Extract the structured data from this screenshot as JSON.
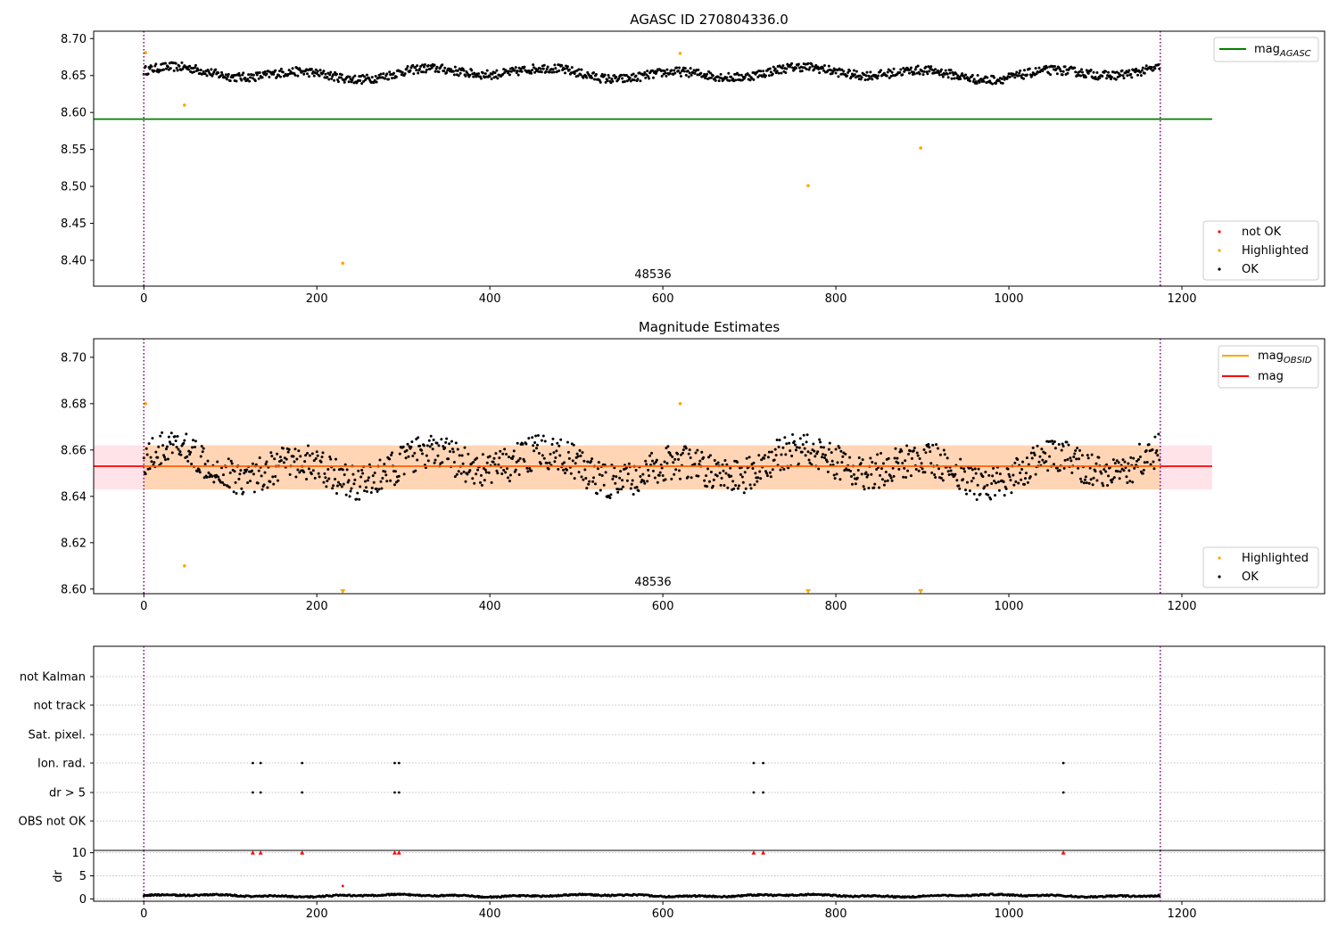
{
  "chart_data": [
    {
      "type": "scatter",
      "title": "AGASC ID 270804336.0",
      "xlim": [
        -58,
        1365
      ],
      "ylim": [
        8.365,
        8.71
      ],
      "xticks": [
        0,
        200,
        400,
        600,
        800,
        1000,
        1200
      ],
      "yticks": [
        8.4,
        8.45,
        8.5,
        8.55,
        8.6,
        8.65,
        8.7
      ],
      "grid": false,
      "obsid_label": "48536",
      "obsid_label_x": 588,
      "vlines": [
        0,
        1175
      ],
      "hlines": [
        {
          "name": "mag_AGASC",
          "y": 8.591,
          "x_range": [
            -58,
            1235
          ],
          "color": "#008000"
        }
      ],
      "noise": {
        "center": 8.653,
        "amplitude": 0.009,
        "spread": 0.006,
        "n": 1175
      },
      "highlighted": [
        {
          "x": 2,
          "y": 8.681
        },
        {
          "x": 47,
          "y": 8.61
        },
        {
          "x": 230,
          "y": 8.396
        },
        {
          "x": 620,
          "y": 8.68
        },
        {
          "x": 768,
          "y": 8.501
        },
        {
          "x": 898,
          "y": 8.552
        }
      ],
      "legends": [
        {
          "placement": "upper right",
          "entries": [
            {
              "label": "mag",
              "sub": "AGASC",
              "kind": "line",
              "color": "#008000"
            }
          ]
        },
        {
          "placement": "lower right",
          "entries": [
            {
              "label": "not OK",
              "kind": "dot",
              "color": "#ff0000"
            },
            {
              "label": "Highlighted",
              "kind": "dot",
              "color": "#ffa500"
            },
            {
              "label": "OK",
              "kind": "dot",
              "color": "#000000"
            }
          ]
        }
      ]
    },
    {
      "type": "scatter",
      "title": "Magnitude Estimates",
      "xlim": [
        -58,
        1365
      ],
      "ylim": [
        8.598,
        8.708
      ],
      "xticks": [
        0,
        200,
        400,
        600,
        800,
        1000,
        1200
      ],
      "yticks": [
        8.6,
        8.62,
        8.64,
        8.66,
        8.68,
        8.7
      ],
      "grid": false,
      "obsid_label": "48536",
      "obsid_label_x": 588,
      "vlines": [
        0,
        1175
      ],
      "band": {
        "y": [
          8.643,
          8.662
        ],
        "x_range": [
          -58,
          1235
        ],
        "inner_x_range": [
          0,
          1175
        ],
        "outer_color": "#ffc0cb",
        "inner_color": "#ffa500"
      },
      "hlines": [
        {
          "name": "mag",
          "y": 8.653,
          "x_range": [
            -58,
            1235
          ],
          "color": "#ff0000"
        }
      ],
      "noise": {
        "center": 8.653,
        "amplitude": 0.008,
        "spread": 0.0075,
        "n": 1175
      },
      "highlighted": [
        {
          "x": 2,
          "y": 8.68
        },
        {
          "x": 47,
          "y": 8.61
        },
        {
          "x": 620,
          "y": 8.68
        }
      ],
      "clipped_markers": [
        {
          "x": 230,
          "y": 8.598
        },
        {
          "x": 768,
          "y": 8.598
        },
        {
          "x": 898,
          "y": 8.598
        }
      ],
      "legends": [
        {
          "placement": "upper right",
          "entries": [
            {
              "label": "mag",
              "sub": "OBSID",
              "kind": "line",
              "color": "#ffa500"
            },
            {
              "label": "mag",
              "kind": "line",
              "color": "#ff0000"
            }
          ]
        },
        {
          "placement": "lower right",
          "entries": [
            {
              "label": "Highlighted",
              "kind": "dot",
              "color": "#ffa500"
            },
            {
              "label": "OK",
              "kind": "dot",
              "color": "#000000"
            }
          ]
        }
      ]
    },
    {
      "type": "scatter",
      "title": "",
      "xlim": [
        -58,
        1365
      ],
      "categories": [
        "not Kalman",
        "not track",
        "Sat. pixel.",
        "Ion. rad.",
        "dr > 5",
        "OBS not OK"
      ],
      "grid": true,
      "vlines": [
        0,
        1175
      ],
      "flag_points": {
        "Ion. rad.": [
          126,
          135,
          183,
          290,
          295,
          705,
          716,
          1063
        ],
        "dr > 5": [
          126,
          135,
          183,
          290,
          295,
          705,
          716,
          1063
        ]
      }
    },
    {
      "type": "scatter",
      "title": "",
      "ylabel": "dr",
      "xlim": [
        -58,
        1365
      ],
      "ylim": [
        -0.5,
        10.5
      ],
      "xticks": [
        0,
        200,
        400,
        600,
        800,
        1000,
        1200
      ],
      "yticks": [
        0,
        5,
        10
      ],
      "grid": true,
      "vlines": [
        0,
        1175
      ],
      "clipped_markers": [
        {
          "x": 126,
          "y": 10
        },
        {
          "x": 135,
          "y": 10
        },
        {
          "x": 183,
          "y": 10
        },
        {
          "x": 290,
          "y": 10
        },
        {
          "x": 295,
          "y": 10
        },
        {
          "x": 705,
          "y": 10
        },
        {
          "x": 716,
          "y": 10
        },
        {
          "x": 1063,
          "y": 10
        }
      ],
      "highlighted": [
        {
          "x": 230,
          "y": 2.8
        }
      ],
      "baseline": {
        "center": 0.7,
        "amplitude": 0.35,
        "spread": 0.15,
        "n": 1175
      }
    }
  ]
}
